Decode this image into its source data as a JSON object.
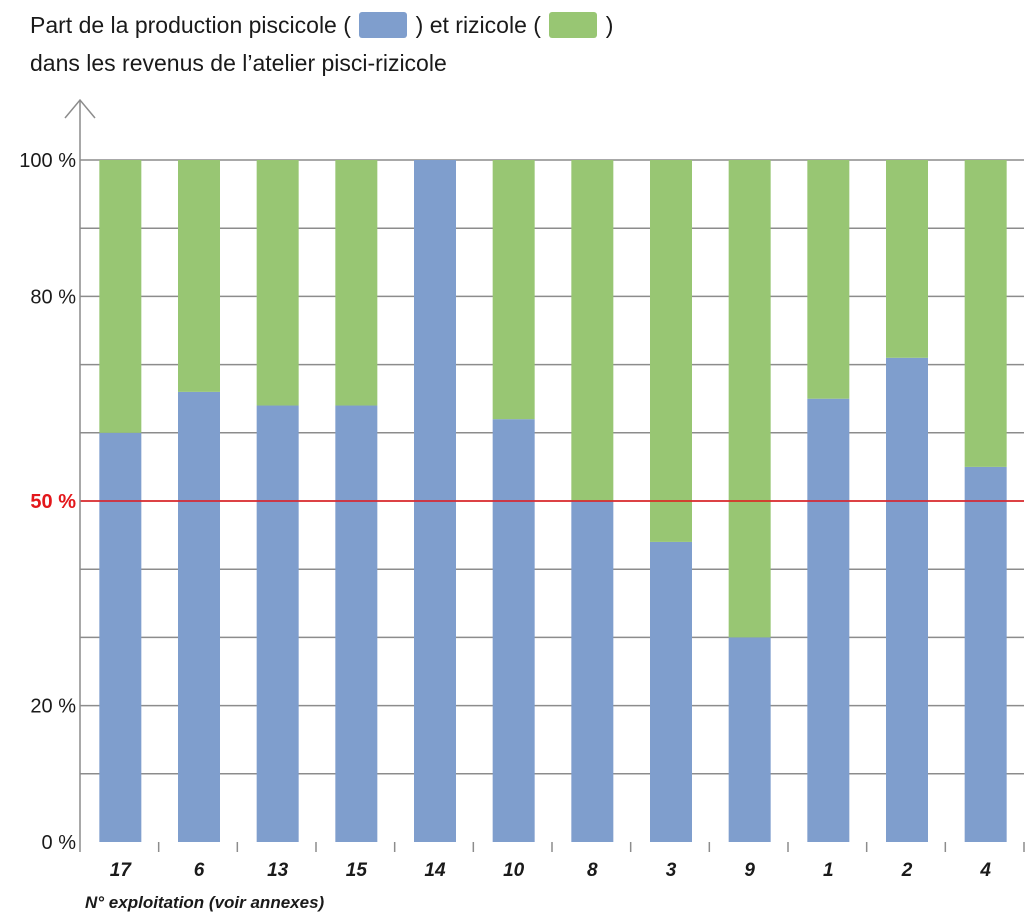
{
  "title": {
    "line1_part1": "Part de la production piscicole (",
    "line1_part2": ") et rizicole (",
    "line1_part3": ")",
    "line2": "dans les revenus de l’atelier pisci-rizicole"
  },
  "colors": {
    "piscicole": "#7f9ecd",
    "rizicole": "#98c673",
    "reference_line": "#e3171b",
    "grid": "#8c8c8c"
  },
  "chart_data": {
    "type": "bar",
    "stacked": true,
    "categories": [
      "17",
      "6",
      "13",
      "15",
      "14",
      "10",
      "8",
      "3",
      "9",
      "1",
      "2",
      "4"
    ],
    "series": [
      {
        "name": "piscicole",
        "values": [
          60,
          66,
          64,
          64,
          100,
          62,
          50,
          44,
          30,
          65,
          71,
          55
        ]
      },
      {
        "name": "rizicole",
        "values": [
          40,
          34,
          36,
          36,
          0,
          38,
          50,
          56,
          70,
          35,
          29,
          45
        ]
      }
    ],
    "xlabel": "N° exploitation (voir annexes)",
    "ylim": [
      0,
      100
    ],
    "yticks": [
      {
        "value": 0,
        "label": "0 %"
      },
      {
        "value": 20,
        "label": "20 %"
      },
      {
        "value": 50,
        "label": "50 %"
      },
      {
        "value": 80,
        "label": "80 %"
      },
      {
        "value": 100,
        "label": "100 %"
      }
    ],
    "gridlines": [
      10,
      20,
      30,
      40,
      50,
      60,
      70,
      80,
      90,
      100
    ],
    "reference_line": 50,
    "grid": true
  }
}
